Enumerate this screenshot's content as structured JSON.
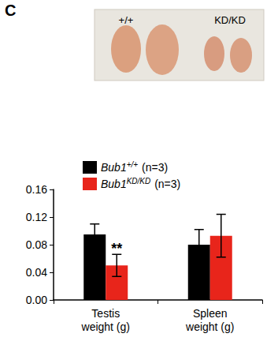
{
  "panel": "C",
  "photo_labels": [
    "+/+",
    "KD/KD"
  ],
  "chart_data": {
    "type": "bar",
    "categories": [
      "Testis weight (g)",
      "Spleen weight (g)"
    ],
    "series": [
      {
        "name": "Bub1+/+ (n=3)",
        "color": "#000000",
        "values": [
          0.095,
          0.08
        ],
        "errors": [
          0.015,
          0.022
        ]
      },
      {
        "name": "Bub1KD/KD (n=3)",
        "color": "#e8251b",
        "values": [
          0.05,
          0.093
        ],
        "errors": [
          0.016,
          0.031
        ]
      }
    ],
    "ylim": [
      0,
      0.16
    ],
    "yticks": [
      {
        "value": 0,
        "label": "0.00"
      },
      {
        "value": 0.04,
        "label": "0.04"
      },
      {
        "value": 0.08,
        "label": "0.08"
      },
      {
        "value": 0.12,
        "label": "0.12"
      },
      {
        "value": 0.16,
        "label": "0.16"
      }
    ],
    "grid": false,
    "legend": "upper left",
    "annotations": [
      {
        "text": "**",
        "category": "Testis weight (g)",
        "series": "Bub1KD/KD (n=3)"
      }
    ]
  }
}
